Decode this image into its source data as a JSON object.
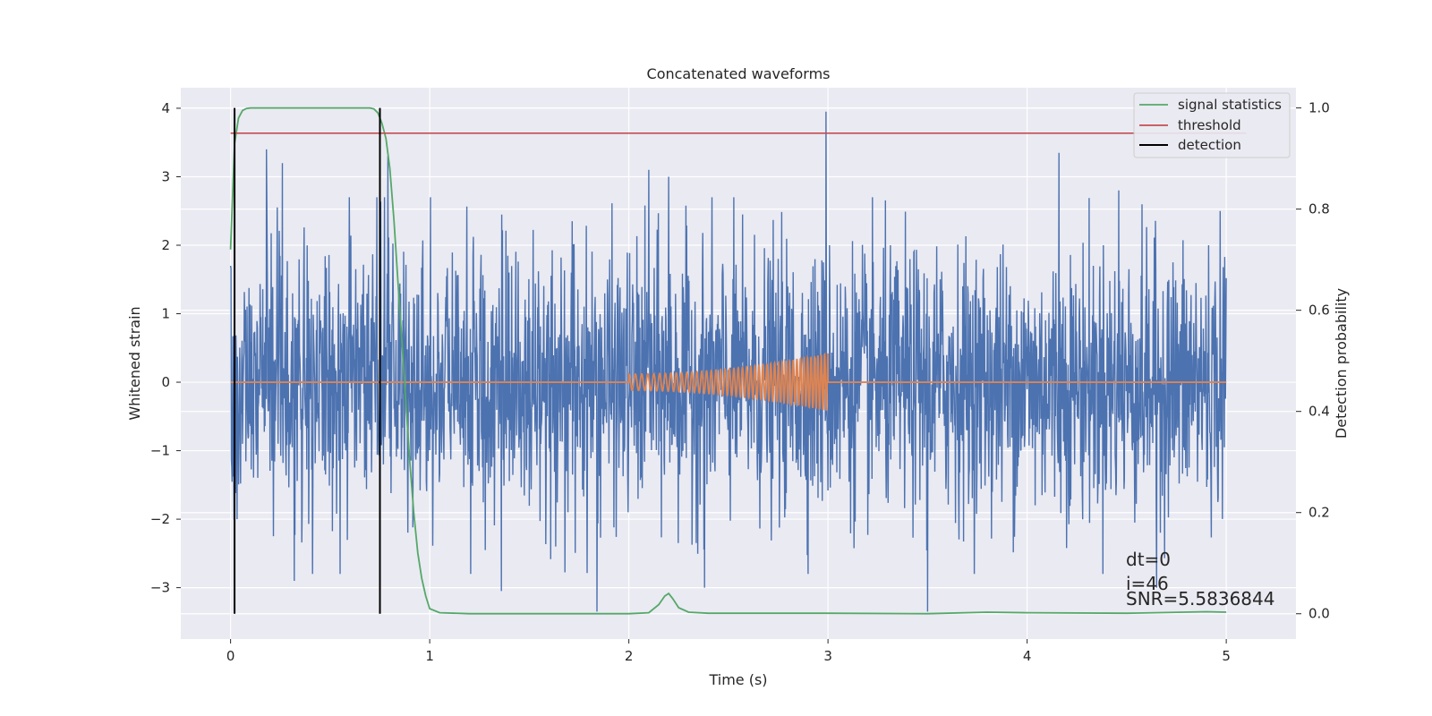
{
  "chart_data": {
    "type": "line",
    "title": "Concatenated waveforms",
    "xlabel": "Time (s)",
    "ylabel": "Whitened strain",
    "y2label": "Detection probability",
    "xlim": [
      -0.25,
      5.35
    ],
    "ylim": [
      -3.75,
      4.3
    ],
    "y2lim": [
      -0.05,
      1.04
    ],
    "xticks": [
      0,
      1,
      2,
      3,
      4,
      5
    ],
    "yticks": [
      -3,
      -2,
      -1,
      0,
      1,
      2,
      3,
      4
    ],
    "y2ticks": [
      0.0,
      0.2,
      0.4,
      0.6,
      0.8,
      1.0
    ],
    "xtick_labels": [
      "0",
      "1",
      "2",
      "3",
      "4",
      "5"
    ],
    "ytick_labels": [
      "−3",
      "−2",
      "−1",
      "0",
      "1",
      "2",
      "3",
      "4"
    ],
    "y2tick_labels": [
      "0.0",
      "0.2",
      "0.4",
      "0.6",
      "0.8",
      "1.0"
    ],
    "grid": true,
    "legend_position": "top-right",
    "colors": {
      "background": "#eaeaf2",
      "grid": "#ffffff",
      "strain": "#4c72b0",
      "template": "#dd8452",
      "signal_statistics": "#55a868",
      "threshold": "#c44e52",
      "detection": "#000000"
    },
    "series": [
      {
        "name": "",
        "role": "whitened strain noise",
        "x_range": [
          0,
          5
        ],
        "typical_amplitude": 1.5,
        "peaks": [
          {
            "x": 0.18,
            "y": 3.4
          },
          {
            "x": 0.26,
            "y": 3.2
          },
          {
            "x": 0.79,
            "y": 3.3
          },
          {
            "x": 2.1,
            "y": 3.1
          },
          {
            "x": 2.2,
            "y": 3.0
          },
          {
            "x": 2.99,
            "y": 3.95
          },
          {
            "x": 4.16,
            "y": 3.35
          },
          {
            "x": 4.46,
            "y": 2.8
          }
        ],
        "troughs": [
          {
            "x": 0.32,
            "y": -2.9
          },
          {
            "x": 1.36,
            "y": -3.05
          },
          {
            "x": 1.84,
            "y": -3.35
          },
          {
            "x": 2.38,
            "y": -3.0
          },
          {
            "x": 3.5,
            "y": -3.35
          },
          {
            "x": 4.65,
            "y": -3.0
          }
        ]
      },
      {
        "name": "",
        "role": "injected waveform",
        "x_range": [
          0,
          5
        ],
        "chirp": {
          "start": 2.0,
          "end": 3.0,
          "amp_start": 0.12,
          "amp_end": 0.42,
          "f_start": 30,
          "f_end": 60
        }
      },
      {
        "name": "signal statistics",
        "axis": "y2",
        "x": [
          0,
          0.02,
          0.04,
          0.06,
          0.08,
          0.1,
          0.2,
          0.3,
          0.4,
          0.5,
          0.6,
          0.7,
          0.72,
          0.74,
          0.76,
          0.78,
          0.8,
          0.82,
          0.84,
          0.86,
          0.88,
          0.9,
          0.92,
          0.94,
          0.96,
          0.98,
          1.0,
          1.05,
          1.2,
          1.5,
          2.0,
          2.1,
          2.15,
          2.18,
          2.2,
          2.22,
          2.25,
          2.3,
          2.4,
          3.0,
          3.5,
          3.8,
          4.0,
          4.5,
          4.9,
          5.0
        ],
        "y": [
          0.72,
          0.93,
          0.98,
          0.995,
          0.999,
          1.0,
          1.0,
          1.0,
          1.0,
          1.0,
          1.0,
          1.0,
          0.998,
          0.99,
          0.97,
          0.94,
          0.88,
          0.78,
          0.66,
          0.54,
          0.42,
          0.3,
          0.2,
          0.12,
          0.07,
          0.035,
          0.01,
          0.002,
          0.0,
          0.0,
          0.0,
          0.002,
          0.018,
          0.035,
          0.04,
          0.03,
          0.012,
          0.003,
          0.001,
          0.001,
          0.0,
          0.003,
          0.002,
          0.001,
          0.004,
          0.003
        ]
      },
      {
        "name": "threshold",
        "axis": "y2",
        "x": [
          0,
          5.1
        ],
        "y": [
          0.95,
          0.95
        ]
      },
      {
        "name": "detection",
        "axis": "y2",
        "segments": [
          {
            "x": 0.02,
            "y": [
              0.0,
              1.0
            ]
          },
          {
            "x": 0.75,
            "y": [
              0.0,
              1.0
            ]
          }
        ]
      }
    ],
    "annotations": [
      "dt=0",
      "i=46",
      "SNR=5.5836844"
    ]
  }
}
